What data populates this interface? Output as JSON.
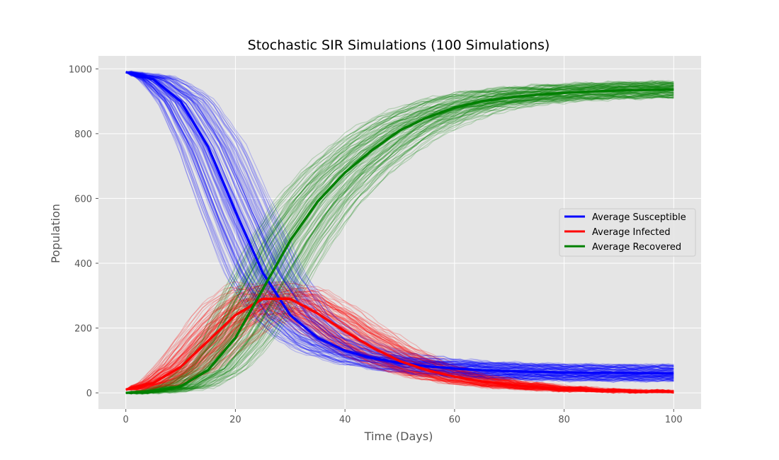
{
  "chart_data": {
    "type": "line",
    "title": "Stochastic SIR Simulations (100 Simulations)",
    "xlabel": "Time (Days)",
    "ylabel": "Population",
    "xlim": [
      -5,
      105
    ],
    "ylim": [
      -50,
      1040
    ],
    "xticks": [
      0,
      20,
      40,
      60,
      80,
      100
    ],
    "yticks": [
      0,
      200,
      400,
      600,
      800,
      1000
    ],
    "grid": true,
    "legend_position": "center-right",
    "simulation_count": 100,
    "x": [
      0,
      5,
      10,
      15,
      20,
      25,
      30,
      35,
      40,
      45,
      50,
      55,
      60,
      65,
      70,
      75,
      80,
      85,
      90,
      95,
      100
    ],
    "series": [
      {
        "name": "Average Susceptible",
        "color": "#0000ff",
        "values": [
          990,
          968,
          900,
          760,
          560,
          370,
          240,
          170,
          130,
          107,
          92,
          82,
          75,
          70,
          67,
          65,
          63,
          62,
          62,
          61,
          61
        ]
      },
      {
        "name": "Average Infected",
        "color": "#ff0000",
        "values": [
          10,
          30,
          80,
          160,
          240,
          290,
          290,
          245,
          190,
          140,
          98,
          70,
          50,
          35,
          25,
          17,
          12,
          8,
          6,
          4,
          3
        ]
      },
      {
        "name": "Average Recovered",
        "color": "#008000",
        "values": [
          0,
          5,
          20,
          70,
          170,
          320,
          470,
          590,
          680,
          750,
          810,
          850,
          880,
          900,
          912,
          920,
          926,
          930,
          933,
          935,
          936
        ]
      }
    ]
  }
}
